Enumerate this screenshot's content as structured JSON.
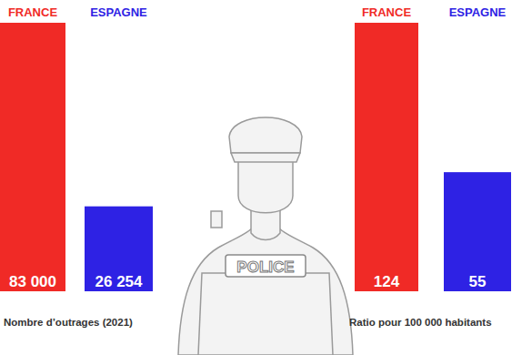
{
  "chart_data": [
    {
      "type": "bar",
      "xlabel": "Nombre d’outrages (2021)",
      "categories": [
        "FRANCE",
        "ESPAGNE"
      ],
      "values": [
        83000,
        26254
      ],
      "value_labels": [
        "83 000",
        "26 254"
      ],
      "colors": [
        "#f02a26",
        "#2e22e4"
      ],
      "ylim": [
        0,
        83000
      ],
      "data_labels": true,
      "tick_labels": "x"
    },
    {
      "type": "bar",
      "xlabel": "Ratio pour 100 000 habitants",
      "categories": [
        "FRANCE",
        "ESPAGNE"
      ],
      "values": [
        124,
        55
      ],
      "colors": [
        "#f02a26",
        "#2e22e4"
      ],
      "ylim": [
        0,
        124
      ],
      "data_labels": true,
      "tick_labels": "x"
    }
  ],
  "illustration": {
    "text": "POLICE"
  }
}
